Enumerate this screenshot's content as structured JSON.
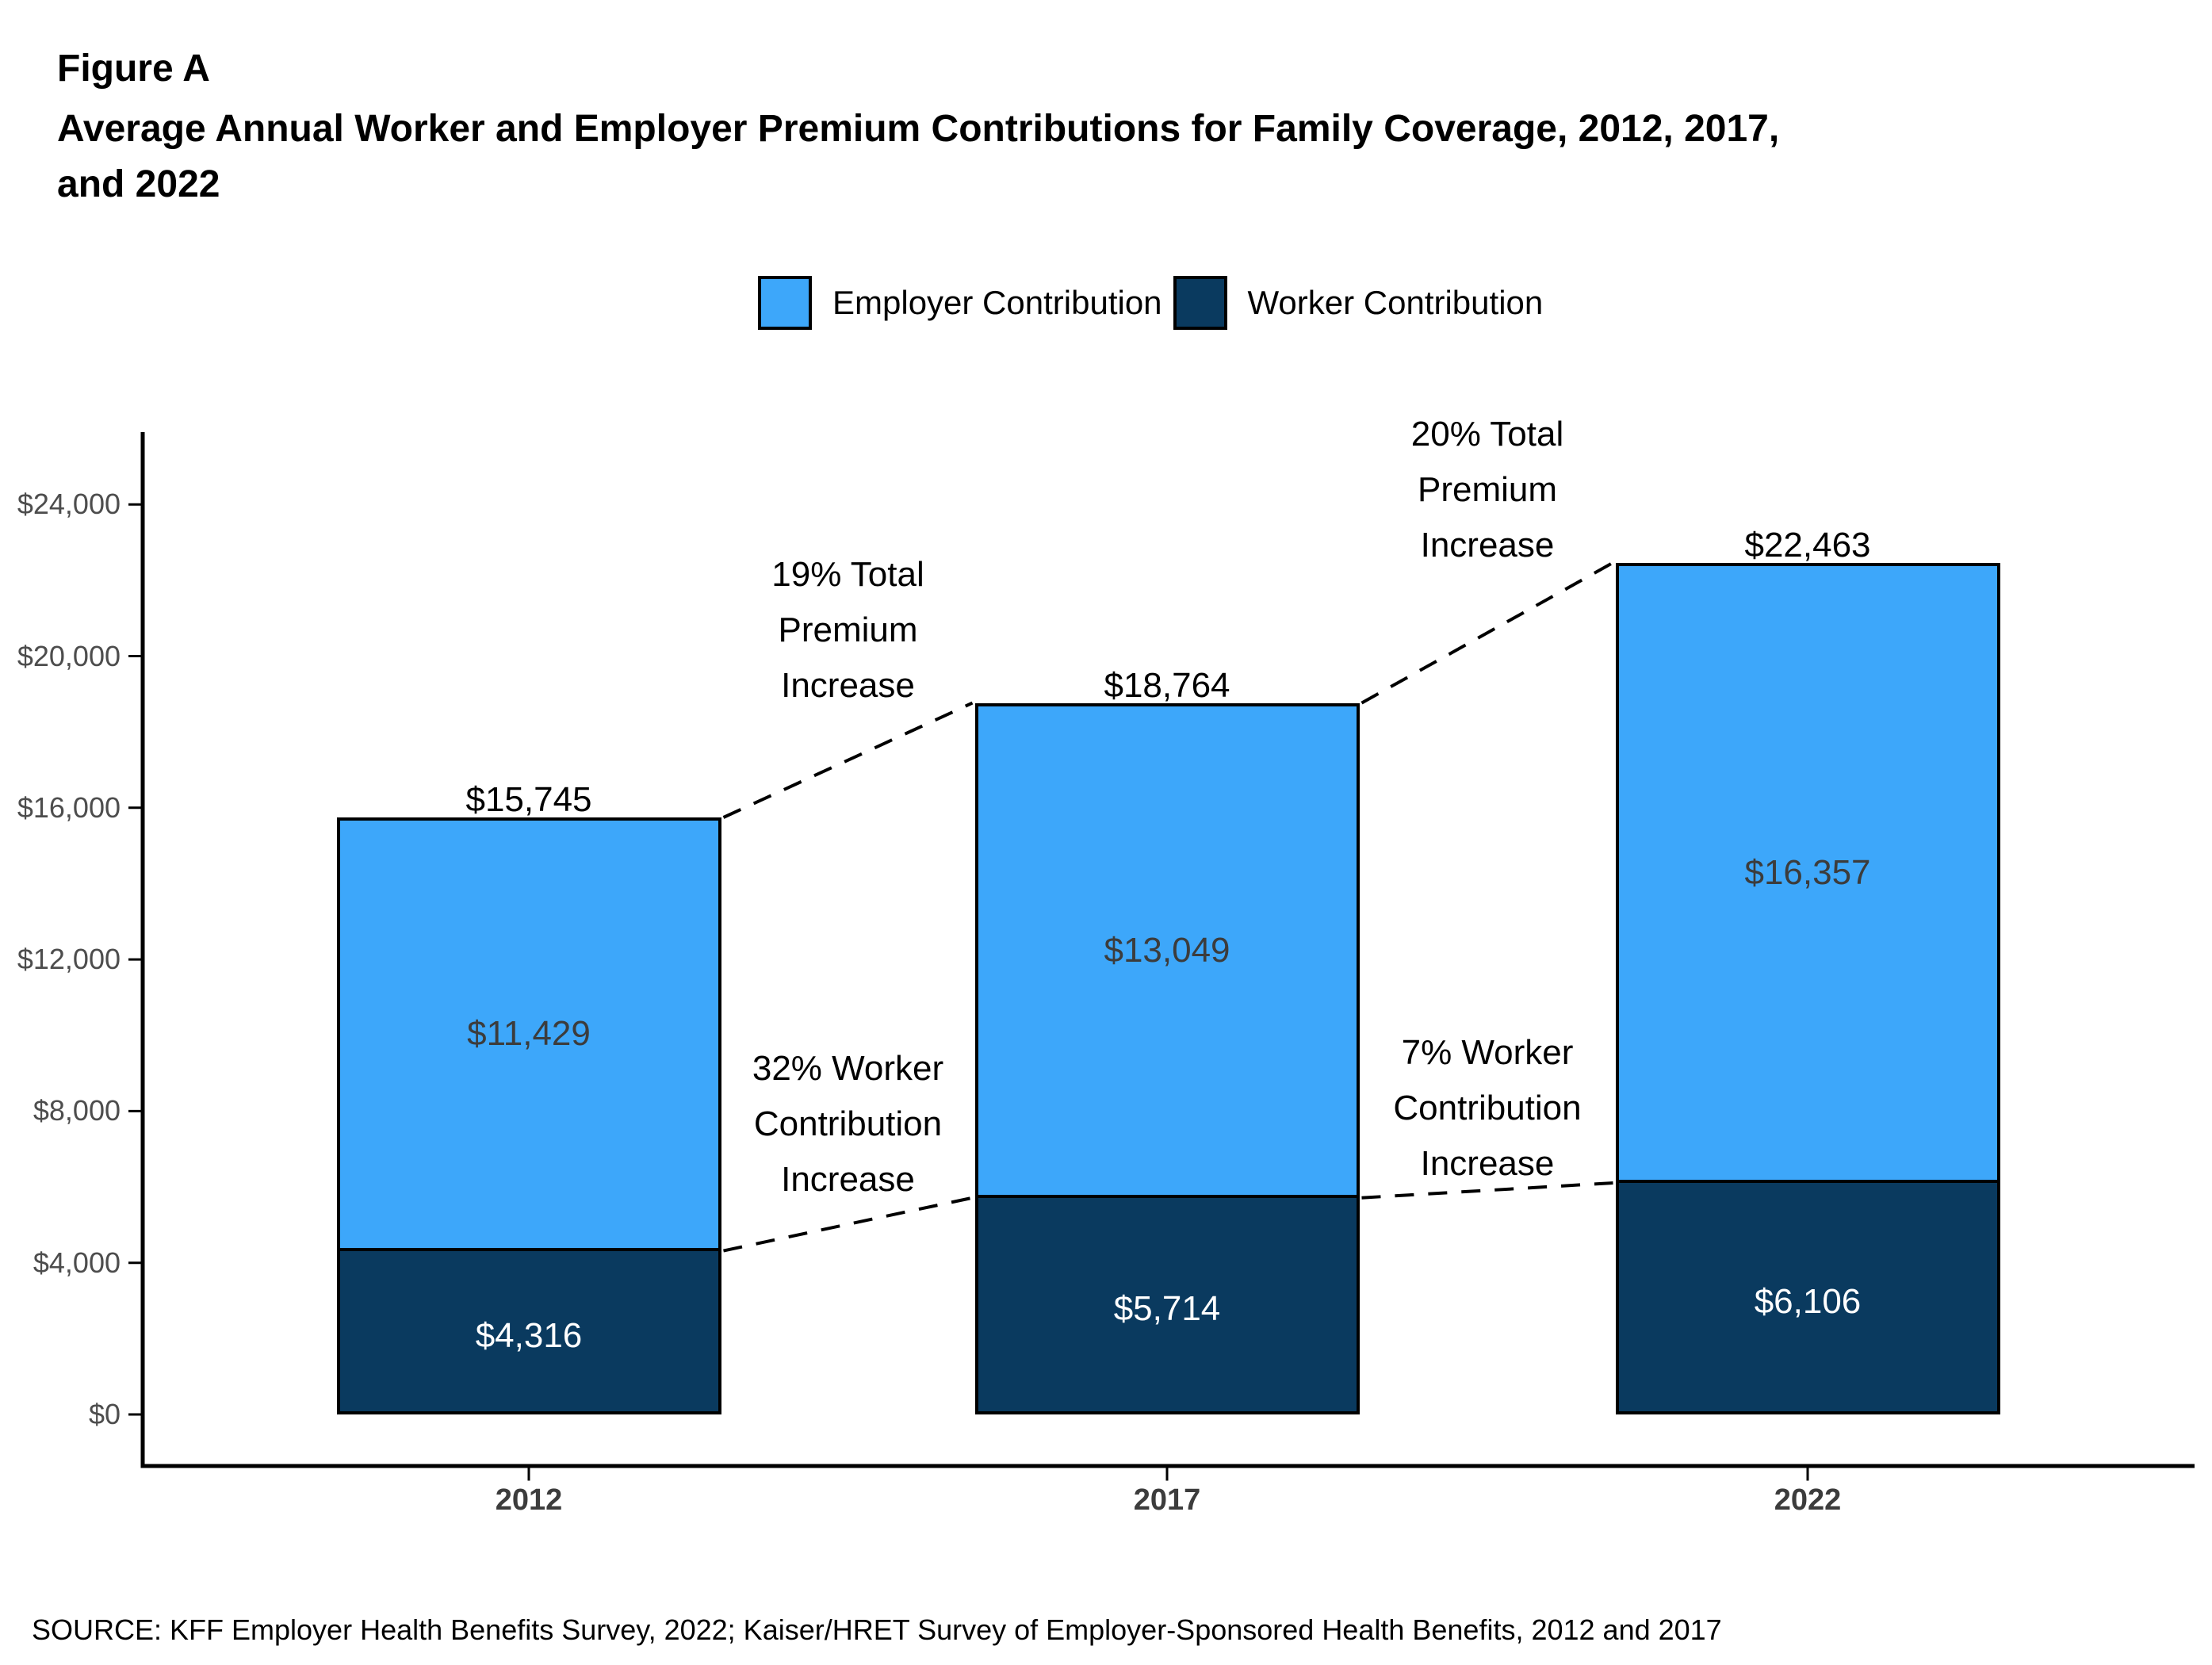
{
  "figure_label": "Figure A",
  "title_lines": [
    "Average Annual Worker and Employer Premium Contributions for Family Coverage, 2012, 2017,",
    "and 2022"
  ],
  "legend": {
    "items": [
      {
        "label": "Employer Contribution",
        "color": "#3DA7FA"
      },
      {
        "label": "Worker Contribution",
        "color": "#0A3A5F"
      }
    ]
  },
  "source": "SOURCE: KFF Employer Health Benefits Survey, 2022; Kaiser/HRET Survey of Employer-Sponsored Health Benefits, 2012 and 2017",
  "chart_data": {
    "type": "bar",
    "stacked": true,
    "title": "Average Annual Worker and Employer Premium Contributions for Family Coverage, 2012, 2017, and 2022",
    "categories": [
      "2012",
      "2017",
      "2022"
    ],
    "series": [
      {
        "name": "Worker Contribution",
        "color": "#0A3A5F",
        "values": [
          4316,
          5714,
          6106
        ],
        "labels": [
          "$4,316",
          "$5,714",
          "$6,106"
        ],
        "label_color": "#ffffff"
      },
      {
        "name": "Employer Contribution",
        "color": "#3DA7FA",
        "values": [
          11429,
          13049,
          16357
        ],
        "labels": [
          "$11,429",
          "$13,049",
          "$16,357"
        ],
        "label_color": "#3c3c3c"
      }
    ],
    "totals": {
      "values": [
        15745,
        18764,
        22463
      ],
      "labels": [
        "$15,745",
        "$18,764",
        "$22,463"
      ]
    },
    "y_axis": {
      "min": 0,
      "max": 24000,
      "ticks": [
        {
          "value": 0,
          "label": "$0"
        },
        {
          "value": 4000,
          "label": "$4,000"
        },
        {
          "value": 8000,
          "label": "$8,000"
        },
        {
          "value": 12000,
          "label": "$12,000"
        },
        {
          "value": 16000,
          "label": "$16,000"
        },
        {
          "value": 20000,
          "label": "$20,000"
        },
        {
          "value": 24000,
          "label": "$24,000"
        }
      ]
    },
    "grid": false,
    "legend_position": "top-center",
    "annotations": [
      {
        "lines": [
          "19% Total",
          "Premium",
          "Increase"
        ],
        "between": [
          0,
          1
        ],
        "attach": "total"
      },
      {
        "lines": [
          "20% Total",
          "Premium",
          "Increase"
        ],
        "between": [
          1,
          2
        ],
        "attach": "total"
      },
      {
        "lines": [
          "32% Worker",
          "Contribution",
          "Increase"
        ],
        "between": [
          0,
          1
        ],
        "attach": "worker"
      },
      {
        "lines": [
          "7% Worker",
          "Contribution",
          "Increase"
        ],
        "between": [
          1,
          2
        ],
        "attach": "worker"
      }
    ],
    "connectors": [
      {
        "between": [
          0,
          1
        ],
        "attach": "total",
        "style": "dashed"
      },
      {
        "between": [
          1,
          2
        ],
        "attach": "total",
        "style": "dashed"
      },
      {
        "between": [
          0,
          1
        ],
        "attach": "worker",
        "style": "dashed"
      },
      {
        "between": [
          1,
          2
        ],
        "attach": "worker",
        "style": "dashed"
      }
    ]
  }
}
